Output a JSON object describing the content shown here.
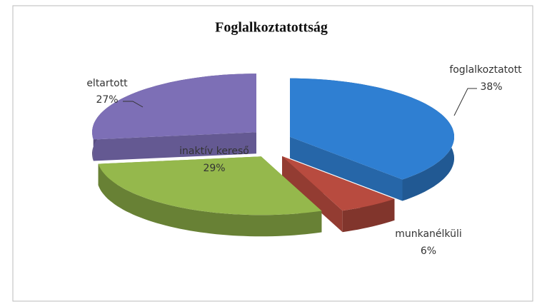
{
  "chart_data": {
    "type": "pie",
    "title": "Foglalkoztatottság",
    "categories": [
      "foglalkoztatott",
      "munkanélküli",
      "inaktív kereső",
      "eltartott"
    ],
    "values": [
      38,
      6,
      29,
      27
    ],
    "value_labels": [
      "38%",
      "6%",
      "29%",
      "27%"
    ],
    "colors": [
      "#2f7fd2",
      "#b84b3f",
      "#95b84c",
      "#7d6fb6"
    ]
  }
}
